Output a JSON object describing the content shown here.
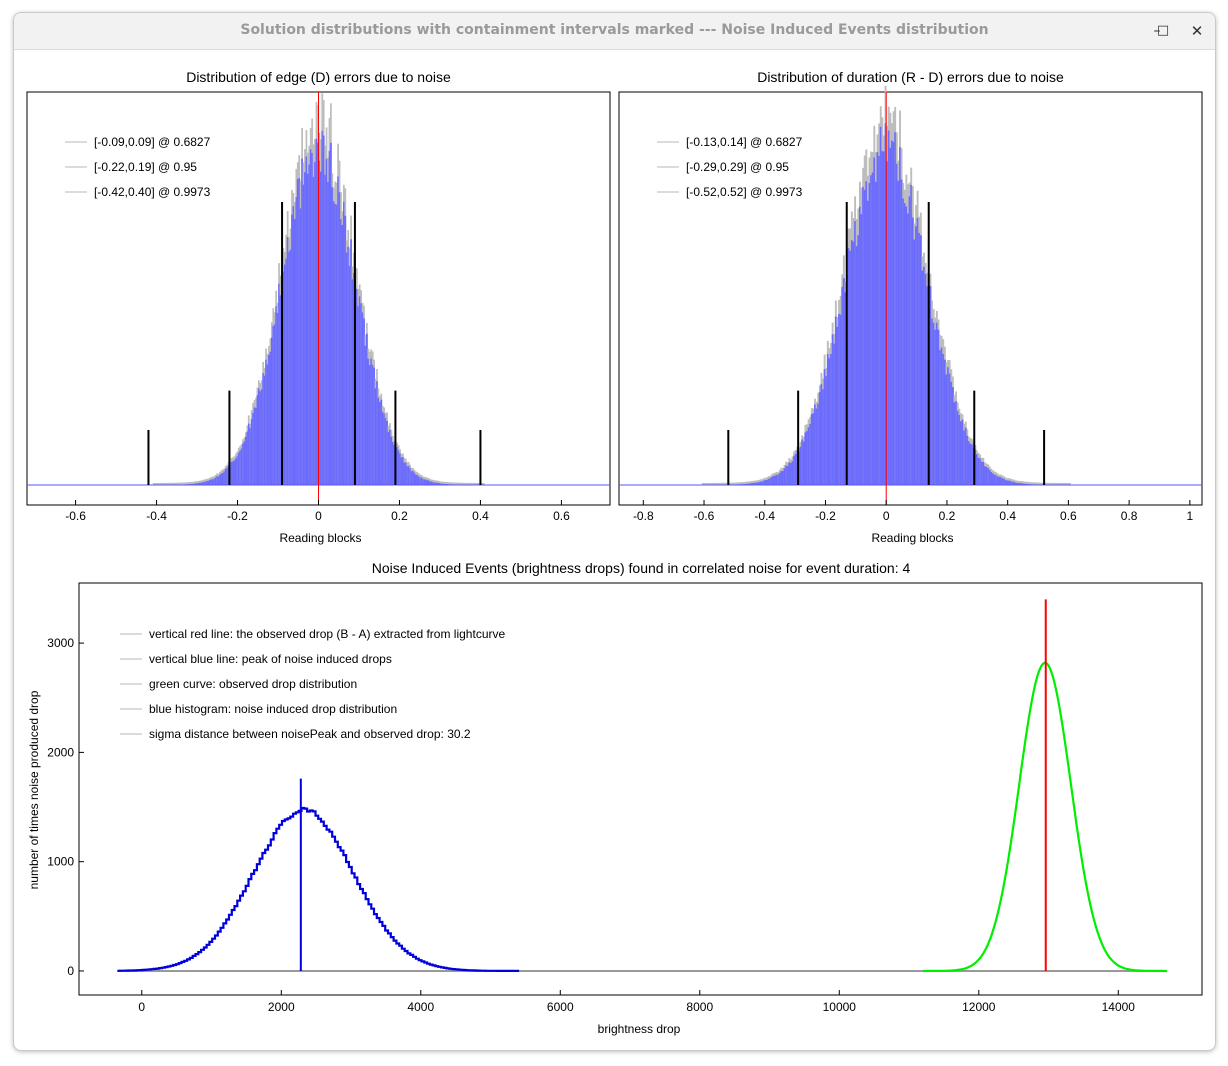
{
  "window": {
    "title": "Solution distributions with containment intervals marked --- Noise Induced Events distribution",
    "controls": {
      "minimize": "–",
      "maximize": "□",
      "close": "✕"
    }
  },
  "chart_data": [
    {
      "type": "bar",
      "title": "Distribution of edge (D) errors due to noise",
      "xlabel": "Reading blocks",
      "xlim": [
        -0.72,
        0.72
      ],
      "xticks": [
        -0.6,
        -0.4,
        -0.2,
        0,
        0.2,
        0.4,
        0.6
      ],
      "xtick_labels": [
        "-0.6",
        "-0.4",
        "-0.2",
        "0",
        "0.2",
        "0.4",
        "0.6"
      ],
      "grid": false,
      "legend_position": "top-left",
      "histogram": {
        "center": 0.0,
        "sigma": 0.093,
        "color": "#6b6bff",
        "outline_color": "#bdbdbd"
      },
      "observed_line": {
        "x": 0.0,
        "color": "#ff0000"
      },
      "intervals": [
        {
          "label": "[-0.09,0.09] @ 0.6827",
          "low": -0.09,
          "high": 0.09,
          "bar_level": 0.72
        },
        {
          "label": "[-0.22,0.19] @ 0.95",
          "low": -0.22,
          "high": 0.19,
          "bar_level": 0.24
        },
        {
          "label": "[-0.42,0.40] @ 0.9973",
          "low": -0.42,
          "high": 0.4,
          "bar_level": 0.14
        }
      ]
    },
    {
      "type": "bar",
      "title": "Distribution of duration (R - D) errors due to noise",
      "xlabel": "Reading blocks",
      "xlim": [
        -0.88,
        1.04
      ],
      "xticks": [
        -0.8,
        -0.6,
        -0.4,
        -0.2,
        0,
        0.2,
        0.4,
        0.6,
        0.8,
        1
      ],
      "xtick_labels": [
        "-0.8",
        "-0.6",
        "-0.4",
        "-0.2",
        "0",
        "0.2",
        "0.4",
        "0.6",
        "0.8",
        "1"
      ],
      "grid": false,
      "legend_position": "top-left",
      "histogram": {
        "center": 0.0,
        "sigma": 0.138,
        "color": "#6b6bff",
        "outline_color": "#bdbdbd"
      },
      "observed_line": {
        "x": 0.0,
        "color": "#ff0000"
      },
      "intervals": [
        {
          "label": "[-0.13,0.14] @ 0.6827",
          "low": -0.13,
          "high": 0.14,
          "bar_level": 0.72
        },
        {
          "label": "[-0.29,0.29] @ 0.95",
          "low": -0.29,
          "high": 0.29,
          "bar_level": 0.24
        },
        {
          "label": "[-0.52,0.52] @ 0.9973",
          "low": -0.52,
          "high": 0.52,
          "bar_level": 0.14
        }
      ]
    },
    {
      "type": "line",
      "title": "Noise Induced Events (brightness drops) found in correlated noise for event duration: 4",
      "xlabel": "brightness drop",
      "ylabel": "number of times noise produced drop",
      "xlim": [
        -900,
        15200
      ],
      "ylim": [
        -220,
        3550
      ],
      "xticks": [
        0,
        2000,
        4000,
        6000,
        8000,
        10000,
        12000,
        14000
      ],
      "xtick_labels": [
        "0",
        "2000",
        "4000",
        "6000",
        "8000",
        "10000",
        "12000",
        "14000"
      ],
      "yticks": [
        0,
        1000,
        2000,
        3000
      ],
      "ytick_labels": [
        "0",
        "1000",
        "2000",
        "3000"
      ],
      "grid": false,
      "legend_position": "top-left",
      "legend": [
        "vertical red line: the observed drop (B - A) extracted from lightcurve",
        "vertical blue line: peak of noise induced drops",
        "green curve: observed drop distribution",
        "blue histogram: noise induced drop distribution",
        "sigma distance between noisePeak and observed drop: 30.2"
      ],
      "series": [
        {
          "kind": "histogram",
          "color": "#0000dd",
          "x_range": [
            -350,
            5400
          ],
          "peak_x": 2300,
          "peak_y": 1470,
          "sigma": 720
        },
        {
          "kind": "curve",
          "color": "#00ee00",
          "x_range": [
            11200,
            14700
          ],
          "peak_x": 12950,
          "peak_y": 2820,
          "sigma": 370
        },
        {
          "kind": "baseline",
          "color": "#999999",
          "x_range": [
            -350,
            14700
          ],
          "y": 0
        }
      ],
      "vlines": [
        {
          "x": 2280,
          "y_top": 1760,
          "color": "#0000dd"
        },
        {
          "x": 12960,
          "y_top": 3400,
          "color": "#ff0000"
        }
      ]
    }
  ]
}
